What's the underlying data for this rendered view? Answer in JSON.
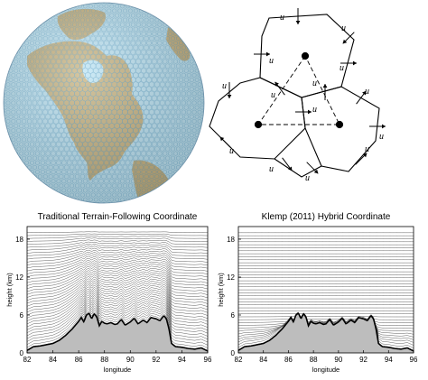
{
  "figure": {
    "globe": {
      "ocean_color": "#bde4f4",
      "land_color": "#c8b482",
      "mesh_color": "#5aa0c8"
    },
    "voronoi": {
      "edge_label": "u"
    },
    "colors": {
      "terrain_fill": "#bdbdbd",
      "surface_line": "#000000",
      "level_line": "#555555"
    }
  },
  "chart_data": [
    {
      "type": "line",
      "title": "Traditional Terrain-Following Coordinate",
      "xlabel": "longitude",
      "ylabel": "height (km)",
      "xlim": [
        82,
        96
      ],
      "ylim": [
        0,
        20
      ],
      "x_ticks": [
        "82",
        "84",
        "86",
        "88",
        "90",
        "92",
        "94",
        "96"
      ],
      "y_ticks": [
        "0",
        "6",
        "12",
        "18"
      ],
      "model_top_km": 19.5,
      "levels": 41,
      "terrain": {
        "x": [
          82.0,
          82.5,
          83.0,
          83.5,
          84.0,
          84.5,
          85.0,
          85.5,
          86.0,
          86.2,
          86.4,
          86.6,
          86.8,
          87.0,
          87.2,
          87.4,
          87.6,
          87.8,
          88.0,
          88.2,
          88.5,
          88.8,
          89.0,
          89.3,
          89.6,
          90.0,
          90.3,
          90.6,
          91.0,
          91.3,
          91.6,
          92.0,
          92.3,
          92.6,
          92.8,
          93.0,
          93.2,
          93.5,
          94.0,
          94.5,
          95.0,
          95.5,
          96.0
        ],
        "height_km": [
          0.4,
          1.0,
          1.1,
          1.3,
          1.5,
          2.0,
          2.8,
          3.8,
          5.0,
          5.6,
          4.9,
          6.0,
          6.3,
          5.4,
          6.2,
          5.7,
          4.3,
          5.0,
          4.7,
          4.6,
          4.8,
          4.5,
          4.6,
          5.3,
          4.4,
          4.9,
          5.5,
          4.6,
          5.2,
          4.8,
          5.6,
          5.4,
          5.1,
          5.9,
          5.4,
          3.8,
          1.5,
          1.0,
          0.9,
          0.7,
          0.6,
          0.8,
          0.3
        ]
      }
    },
    {
      "type": "line",
      "title": "Klemp (2011) Hybrid Coordinate",
      "xlabel": "longitude",
      "ylabel": "height (km)",
      "xlim": [
        82,
        96
      ],
      "ylim": [
        0,
        20
      ],
      "x_ticks": [
        "82",
        "84",
        "86",
        "88",
        "90",
        "92",
        "94",
        "96"
      ],
      "y_ticks": [
        "0",
        "6",
        "12",
        "18"
      ],
      "model_top_km": 19.5,
      "levels": 41,
      "terrain": {
        "x": [
          82.0,
          82.5,
          83.0,
          83.5,
          84.0,
          84.5,
          85.0,
          85.5,
          86.0,
          86.2,
          86.4,
          86.6,
          86.8,
          87.0,
          87.2,
          87.4,
          87.6,
          87.8,
          88.0,
          88.2,
          88.5,
          88.8,
          89.0,
          89.3,
          89.6,
          90.0,
          90.3,
          90.6,
          91.0,
          91.3,
          91.6,
          92.0,
          92.3,
          92.6,
          92.8,
          93.0,
          93.2,
          93.5,
          94.0,
          94.5,
          95.0,
          95.5,
          96.0
        ],
        "height_km": [
          0.4,
          1.0,
          1.1,
          1.3,
          1.5,
          2.0,
          2.8,
          3.8,
          5.0,
          5.6,
          4.9,
          6.0,
          6.3,
          5.4,
          6.2,
          5.7,
          4.3,
          5.0,
          4.7,
          4.6,
          4.8,
          4.5,
          4.6,
          5.3,
          4.4,
          4.9,
          5.5,
          4.6,
          5.2,
          4.8,
          5.6,
          5.4,
          5.1,
          5.9,
          5.4,
          3.8,
          1.5,
          1.0,
          0.9,
          0.7,
          0.6,
          0.8,
          0.3
        ]
      }
    }
  ]
}
